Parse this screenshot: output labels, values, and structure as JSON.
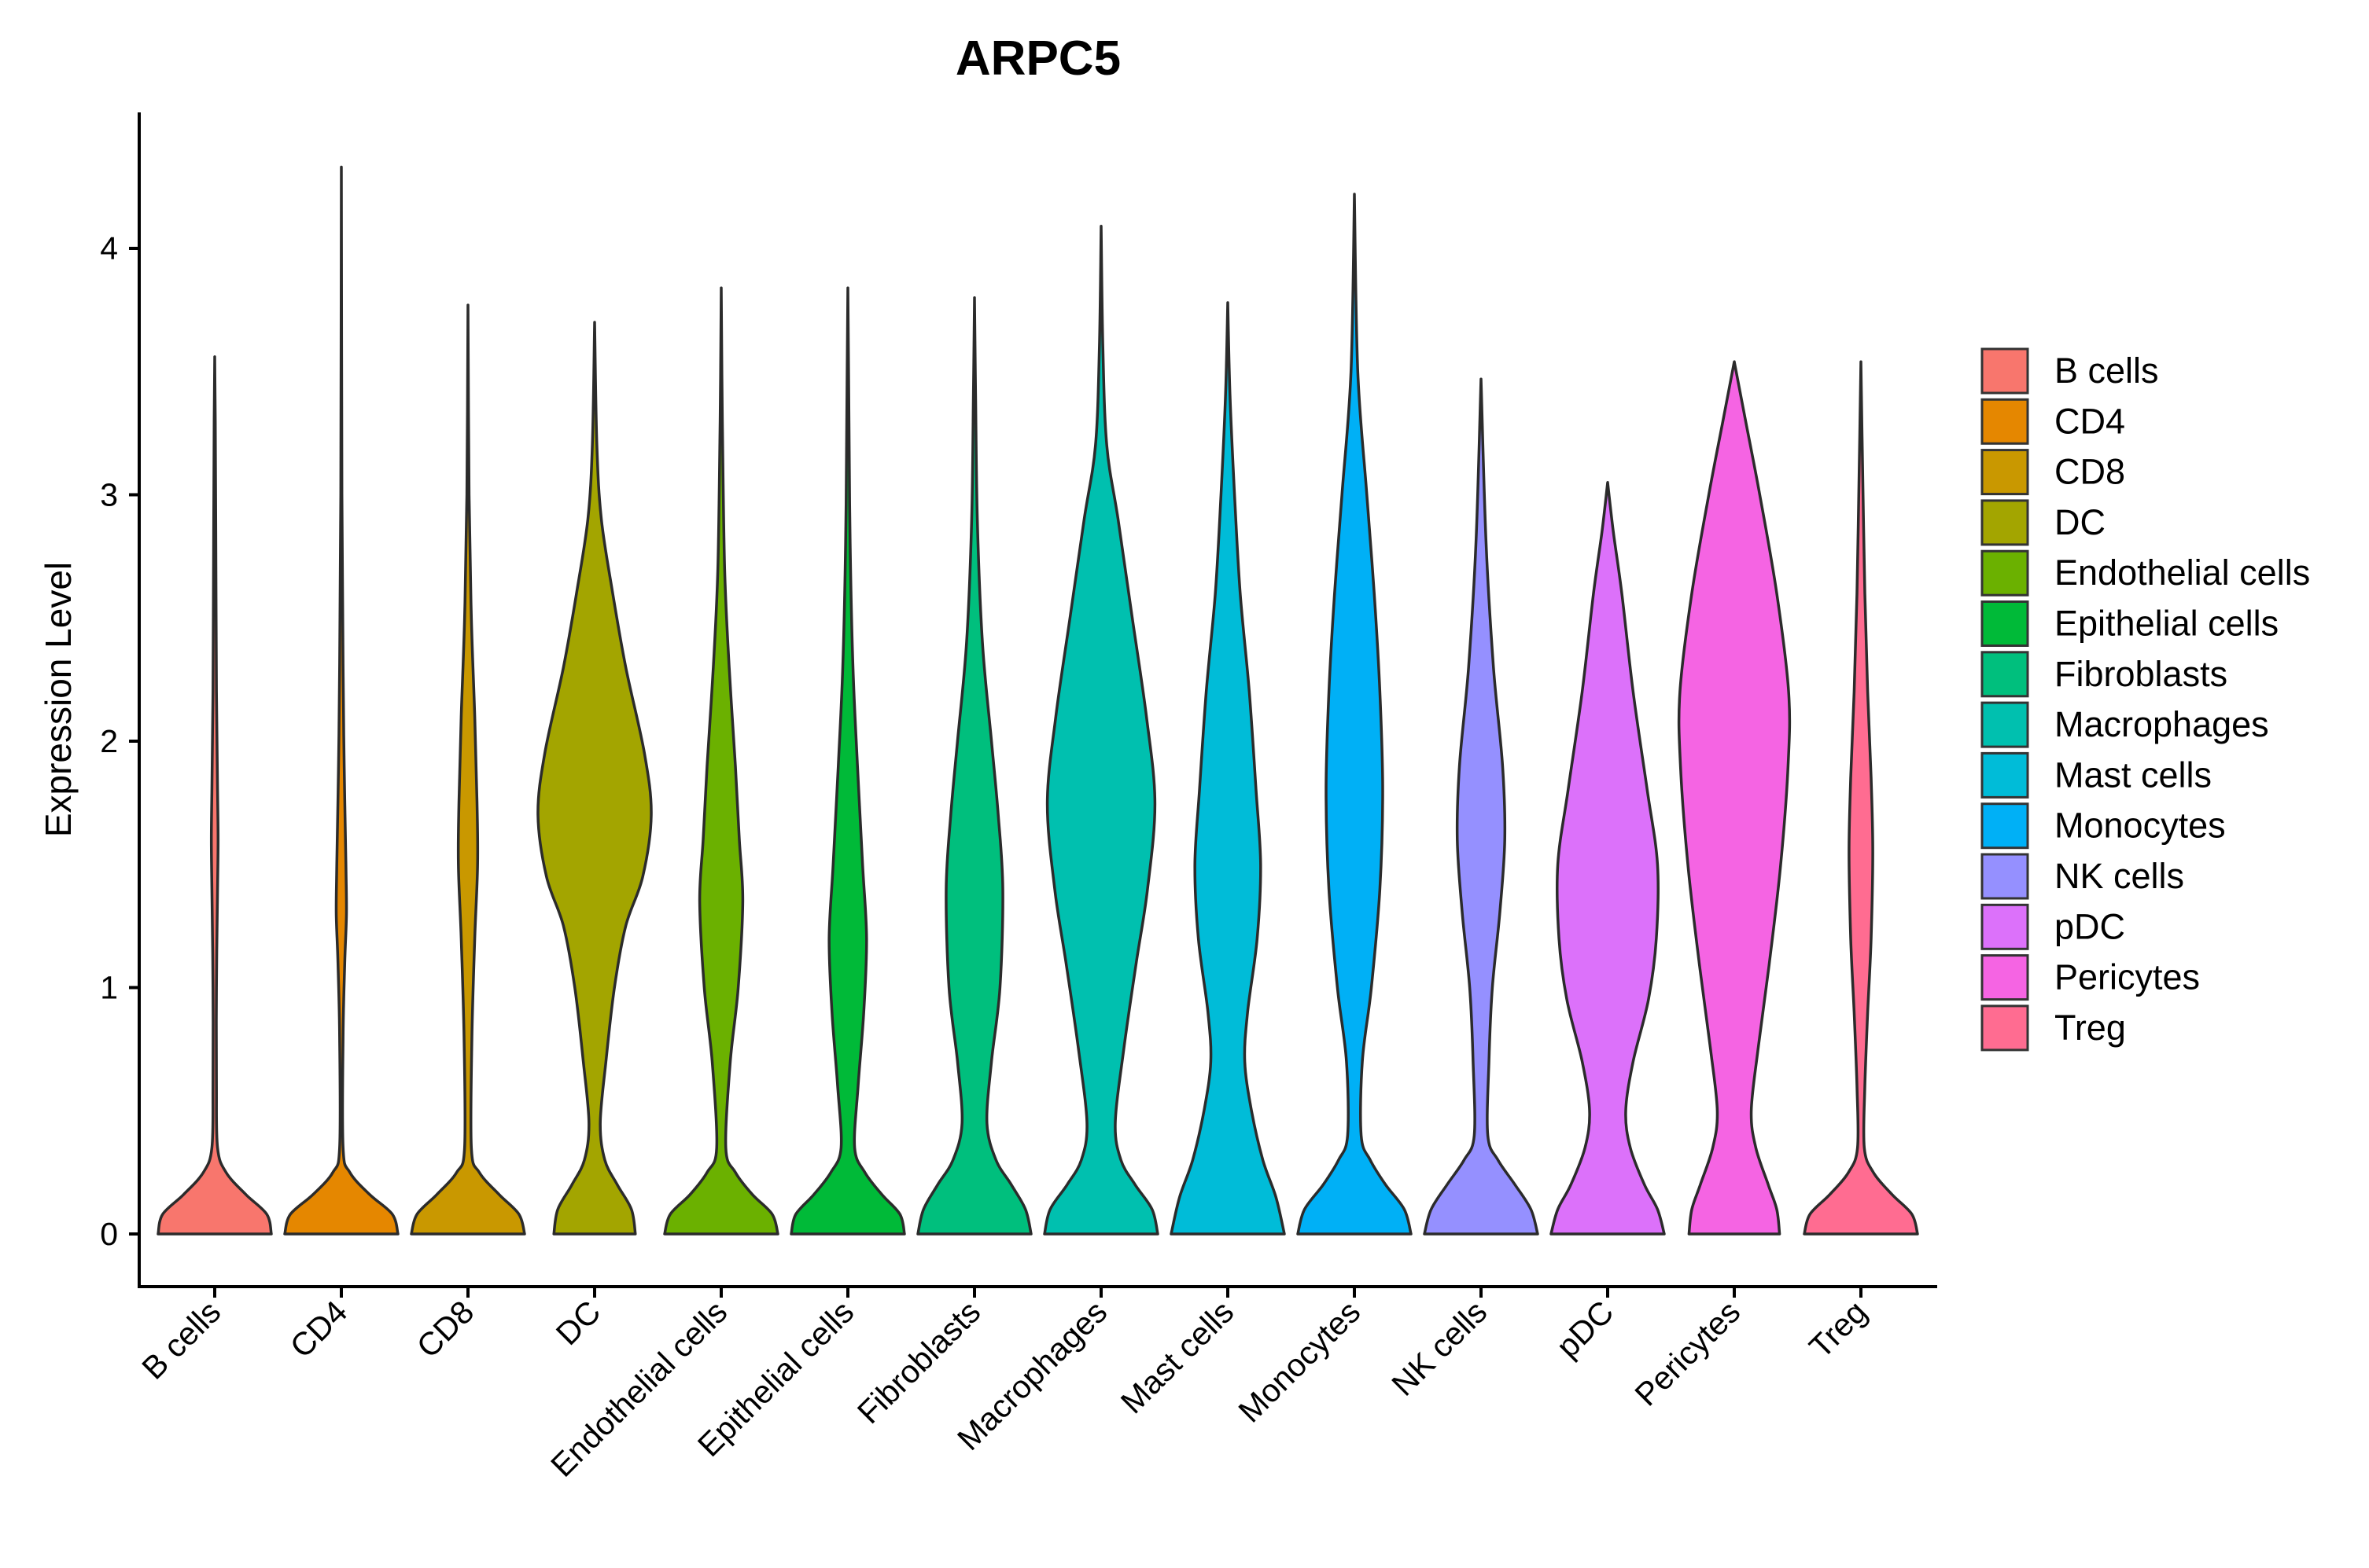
{
  "chart_data": {
    "type": "violin",
    "title": "ARPC5",
    "xlabel": "",
    "ylabel": "Expression Level",
    "ylim": [
      -0.2,
      4.55
    ],
    "yticks": [
      0,
      1,
      2,
      3,
      4
    ],
    "legend_position": "right",
    "categories": [
      "B cells",
      "CD4",
      "CD8",
      "DC",
      "Endothelial cells",
      "Epithelial cells",
      "Fibroblasts",
      "Macrophages",
      "Mast cells",
      "Monocytes",
      "NK cells",
      "pDC",
      "Pericytes",
      "Treg"
    ],
    "colors": [
      "#F8766D",
      "#E58700",
      "#C99800",
      "#A3A500",
      "#6BB100",
      "#00BA38",
      "#00BF7D",
      "#00C0AF",
      "#00BCD8",
      "#00B0F6",
      "#9590FF",
      "#DC71FA",
      "#F564E3",
      "#FF6C91"
    ],
    "max_values": [
      3.56,
      4.33,
      3.77,
      3.7,
      3.84,
      3.84,
      3.8,
      4.09,
      3.78,
      4.22,
      3.47,
      3.05,
      3.54,
      3.54
    ],
    "density_profiles": [
      {
        "name": "B cells",
        "points": [
          [
            0,
            1.0
          ],
          [
            0.08,
            0.92
          ],
          [
            0.16,
            0.55
          ],
          [
            0.25,
            0.2
          ],
          [
            0.35,
            0.05
          ],
          [
            0.6,
            0.03
          ],
          [
            1.0,
            0.03
          ],
          [
            1.4,
            0.05
          ],
          [
            1.6,
            0.06
          ],
          [
            1.8,
            0.05
          ],
          [
            2.2,
            0.03
          ],
          [
            2.8,
            0.02
          ],
          [
            3.3,
            0.01
          ],
          [
            3.56,
            0.0
          ]
        ]
      },
      {
        "name": "CD4",
        "points": [
          [
            0,
            1.0
          ],
          [
            0.08,
            0.9
          ],
          [
            0.16,
            0.5
          ],
          [
            0.25,
            0.15
          ],
          [
            0.35,
            0.03
          ],
          [
            0.8,
            0.03
          ],
          [
            1.1,
            0.06
          ],
          [
            1.3,
            0.09
          ],
          [
            1.5,
            0.08
          ],
          [
            1.9,
            0.05
          ],
          [
            2.3,
            0.03
          ],
          [
            3.0,
            0.01
          ],
          [
            4.33,
            0.0
          ]
        ]
      },
      {
        "name": "CD8",
        "points": [
          [
            0,
            1.0
          ],
          [
            0.08,
            0.9
          ],
          [
            0.16,
            0.55
          ],
          [
            0.25,
            0.2
          ],
          [
            0.35,
            0.06
          ],
          [
            0.8,
            0.07
          ],
          [
            1.2,
            0.12
          ],
          [
            1.5,
            0.17
          ],
          [
            1.75,
            0.16
          ],
          [
            2.1,
            0.12
          ],
          [
            2.5,
            0.06
          ],
          [
            3.0,
            0.02
          ],
          [
            3.77,
            0.0
          ]
        ]
      },
      {
        "name": "DC",
        "points": [
          [
            0,
            0.72
          ],
          [
            0.1,
            0.65
          ],
          [
            0.2,
            0.4
          ],
          [
            0.3,
            0.18
          ],
          [
            0.45,
            0.1
          ],
          [
            0.7,
            0.2
          ],
          [
            1.0,
            0.35
          ],
          [
            1.25,
            0.55
          ],
          [
            1.45,
            0.85
          ],
          [
            1.7,
            1.0
          ],
          [
            1.95,
            0.88
          ],
          [
            2.3,
            0.55
          ],
          [
            2.6,
            0.32
          ],
          [
            2.9,
            0.12
          ],
          [
            3.2,
            0.04
          ],
          [
            3.7,
            0.0
          ]
        ]
      },
      {
        "name": "Endothelial cells",
        "points": [
          [
            0,
            1.0
          ],
          [
            0.08,
            0.9
          ],
          [
            0.16,
            0.55
          ],
          [
            0.25,
            0.25
          ],
          [
            0.35,
            0.08
          ],
          [
            0.7,
            0.16
          ],
          [
            1.0,
            0.3
          ],
          [
            1.35,
            0.38
          ],
          [
            1.6,
            0.32
          ],
          [
            1.9,
            0.25
          ],
          [
            2.3,
            0.14
          ],
          [
            2.7,
            0.06
          ],
          [
            3.3,
            0.02
          ],
          [
            3.84,
            0.0
          ]
        ]
      },
      {
        "name": "Epithelial cells",
        "points": [
          [
            0,
            1.0
          ],
          [
            0.08,
            0.92
          ],
          [
            0.16,
            0.6
          ],
          [
            0.25,
            0.3
          ],
          [
            0.35,
            0.12
          ],
          [
            0.6,
            0.18
          ],
          [
            0.9,
            0.28
          ],
          [
            1.2,
            0.33
          ],
          [
            1.5,
            0.26
          ],
          [
            1.9,
            0.17
          ],
          [
            2.3,
            0.09
          ],
          [
            2.8,
            0.04
          ],
          [
            3.3,
            0.02
          ],
          [
            3.84,
            0.0
          ]
        ]
      },
      {
        "name": "Fibroblasts",
        "points": [
          [
            0,
            1.0
          ],
          [
            0.1,
            0.9
          ],
          [
            0.2,
            0.65
          ],
          [
            0.3,
            0.38
          ],
          [
            0.45,
            0.22
          ],
          [
            0.7,
            0.3
          ],
          [
            1.0,
            0.45
          ],
          [
            1.4,
            0.5
          ],
          [
            1.7,
            0.42
          ],
          [
            2.0,
            0.3
          ],
          [
            2.4,
            0.14
          ],
          [
            2.9,
            0.05
          ],
          [
            3.4,
            0.02
          ],
          [
            3.8,
            0.0
          ]
        ]
      },
      {
        "name": "Macrophages",
        "points": [
          [
            0,
            1.0
          ],
          [
            0.1,
            0.9
          ],
          [
            0.2,
            0.6
          ],
          [
            0.3,
            0.35
          ],
          [
            0.45,
            0.25
          ],
          [
            0.75,
            0.4
          ],
          [
            1.1,
            0.62
          ],
          [
            1.4,
            0.82
          ],
          [
            1.75,
            0.95
          ],
          [
            2.1,
            0.8
          ],
          [
            2.5,
            0.55
          ],
          [
            2.9,
            0.3
          ],
          [
            3.2,
            0.1
          ],
          [
            3.6,
            0.03
          ],
          [
            4.09,
            0.0
          ]
        ]
      },
      {
        "name": "Mast cells",
        "points": [
          [
            0,
            1.0
          ],
          [
            0.15,
            0.85
          ],
          [
            0.3,
            0.62
          ],
          [
            0.5,
            0.42
          ],
          [
            0.7,
            0.3
          ],
          [
            0.9,
            0.35
          ],
          [
            1.2,
            0.52
          ],
          [
            1.5,
            0.58
          ],
          [
            1.8,
            0.5
          ],
          [
            2.2,
            0.38
          ],
          [
            2.6,
            0.22
          ],
          [
            3.0,
            0.12
          ],
          [
            3.4,
            0.04
          ],
          [
            3.78,
            0.0
          ]
        ]
      },
      {
        "name": "Monocytes",
        "points": [
          [
            0,
            1.0
          ],
          [
            0.1,
            0.88
          ],
          [
            0.2,
            0.55
          ],
          [
            0.3,
            0.28
          ],
          [
            0.4,
            0.12
          ],
          [
            0.7,
            0.14
          ],
          [
            1.0,
            0.3
          ],
          [
            1.4,
            0.45
          ],
          [
            1.8,
            0.5
          ],
          [
            2.2,
            0.45
          ],
          [
            2.6,
            0.35
          ],
          [
            3.0,
            0.22
          ],
          [
            3.5,
            0.06
          ],
          [
            4.22,
            0.0
          ]
        ]
      },
      {
        "name": "NK cells",
        "points": [
          [
            0,
            1.0
          ],
          [
            0.1,
            0.88
          ],
          [
            0.2,
            0.6
          ],
          [
            0.3,
            0.3
          ],
          [
            0.4,
            0.12
          ],
          [
            0.7,
            0.14
          ],
          [
            1.0,
            0.2
          ],
          [
            1.3,
            0.33
          ],
          [
            1.6,
            0.42
          ],
          [
            1.9,
            0.38
          ],
          [
            2.3,
            0.22
          ],
          [
            2.8,
            0.09
          ],
          [
            3.47,
            0.0
          ]
        ]
      },
      {
        "name": "pDC",
        "points": [
          [
            0,
            1.0
          ],
          [
            0.1,
            0.88
          ],
          [
            0.2,
            0.65
          ],
          [
            0.35,
            0.4
          ],
          [
            0.5,
            0.32
          ],
          [
            0.7,
            0.45
          ],
          [
            0.95,
            0.72
          ],
          [
            1.2,
            0.86
          ],
          [
            1.5,
            0.88
          ],
          [
            1.8,
            0.7
          ],
          [
            2.2,
            0.45
          ],
          [
            2.6,
            0.25
          ],
          [
            2.85,
            0.1
          ],
          [
            3.05,
            0.0
          ]
        ]
      },
      {
        "name": "Pericytes",
        "points": [
          [
            0,
            0.8
          ],
          [
            0.1,
            0.75
          ],
          [
            0.2,
            0.6
          ],
          [
            0.35,
            0.38
          ],
          [
            0.5,
            0.3
          ],
          [
            0.75,
            0.42
          ],
          [
            1.1,
            0.62
          ],
          [
            1.5,
            0.82
          ],
          [
            1.9,
            0.95
          ],
          [
            2.2,
            0.96
          ],
          [
            2.6,
            0.75
          ],
          [
            3.0,
            0.45
          ],
          [
            3.3,
            0.2
          ],
          [
            3.54,
            0.0
          ]
        ]
      },
      {
        "name": "Treg",
        "points": [
          [
            0,
            1.0
          ],
          [
            0.08,
            0.9
          ],
          [
            0.16,
            0.55
          ],
          [
            0.25,
            0.22
          ],
          [
            0.35,
            0.06
          ],
          [
            0.6,
            0.07
          ],
          [
            0.9,
            0.12
          ],
          [
            1.2,
            0.18
          ],
          [
            1.55,
            0.21
          ],
          [
            1.85,
            0.18
          ],
          [
            2.2,
            0.12
          ],
          [
            2.6,
            0.07
          ],
          [
            3.1,
            0.03
          ],
          [
            3.54,
            0.0
          ]
        ]
      }
    ]
  },
  "legend": {
    "items": [
      "B cells",
      "CD4",
      "CD8",
      "DC",
      "Endothelial cells",
      "Epithelial cells",
      "Fibroblasts",
      "Macrophages",
      "Mast cells",
      "Monocytes",
      "NK cells",
      "pDC",
      "Pericytes",
      "Treg"
    ]
  }
}
